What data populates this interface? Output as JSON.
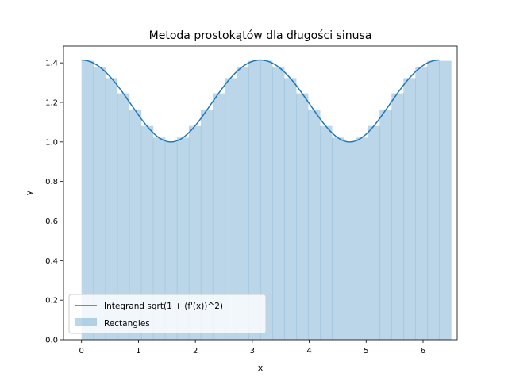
{
  "chart_data": {
    "type": "bar",
    "title": "Metoda prostokątów dla długości sinusa",
    "xlabel": "x",
    "ylabel": "y",
    "xlim": [
      -0.3167,
      6.5999
    ],
    "ylim": [
      0.0,
      1.4849
    ],
    "xticks": [
      0,
      1,
      2,
      3,
      4,
      5,
      6
    ],
    "yticks": [
      0.0,
      0.2,
      0.4,
      0.6,
      0.8,
      1.0,
      1.2,
      1.4
    ],
    "xtick_labels": [
      "0",
      "1",
      "2",
      "3",
      "4",
      "5",
      "6"
    ],
    "ytick_labels": [
      "0.0",
      "0.2",
      "0.4",
      "0.6",
      "0.8",
      "1.0",
      "1.2",
      "1.4"
    ],
    "grid": false,
    "legend_position": "lower-left",
    "series": [
      {
        "name": "Integrand sqrt(1 + (f'(x))^2)",
        "kind": "line",
        "color": "#1f77b4",
        "x_range": [
          0,
          6.2832
        ],
        "function": "sqrt(1 + cos(x)^2)"
      },
      {
        "name": "Rectangles",
        "kind": "bar",
        "color": "#1f77b4",
        "alpha": 0.3,
        "width": 0.2094,
        "x": [
          0.1047,
          0.3142,
          0.5236,
          0.733,
          0.9425,
          1.1519,
          1.3614,
          1.5708,
          1.7802,
          1.9897,
          2.1991,
          2.4086,
          2.618,
          2.8274,
          3.0369,
          3.2463,
          3.4558,
          3.6652,
          3.8746,
          4.0841,
          4.2935,
          4.5029,
          4.7124,
          4.9218,
          5.1313,
          5.3407,
          5.5501,
          5.7596,
          5.969,
          6.1785,
          6.3879
        ],
        "values": [
          1.4103,
          1.3763,
          1.3229,
          1.2457,
          1.1614,
          1.0808,
          1.0219,
          1.0,
          1.0219,
          1.0808,
          1.1614,
          1.2457,
          1.3229,
          1.3763,
          1.4103,
          1.4103,
          1.3763,
          1.3229,
          1.2457,
          1.1614,
          1.0808,
          1.0219,
          1.0,
          1.0219,
          1.0808,
          1.1614,
          1.2457,
          1.3229,
          1.3763,
          1.4103,
          1.4103
        ]
      }
    ]
  }
}
